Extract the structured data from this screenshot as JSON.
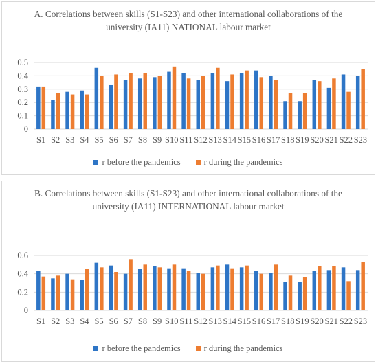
{
  "colors": {
    "before": "#2e75c6",
    "during": "#ed7d31",
    "grid": "#d9d9d9",
    "text": "#595959"
  },
  "chart_data": [
    {
      "type": "bar",
      "title": "A. Correlations between skills (S1-S23) and other international collaborations of the university (IA11) NATIONAL labour market",
      "categories": [
        "S1",
        "S2",
        "S3",
        "S4",
        "S5",
        "S6",
        "S7",
        "S8",
        "S9",
        "S10",
        "S11",
        "S12",
        "S13",
        "S14",
        "S15",
        "S16",
        "S17",
        "S18",
        "S19",
        "S20",
        "S21",
        "S22",
        "S23"
      ],
      "ylim": [
        0,
        0.5
      ],
      "yticks": [
        "0",
        "0.1",
        "0.2",
        "0.3",
        "0.4",
        "0.5"
      ],
      "series": [
        {
          "name": "r before the pandemics",
          "values": [
            0.32,
            0.22,
            0.28,
            0.29,
            0.46,
            0.33,
            0.37,
            0.38,
            0.39,
            0.43,
            0.42,
            0.37,
            0.42,
            0.36,
            0.42,
            0.44,
            0.4,
            0.21,
            0.21,
            0.37,
            0.31,
            0.41,
            0.4
          ]
        },
        {
          "name": "r during the pandemics",
          "values": [
            0.32,
            0.27,
            0.26,
            0.26,
            0.4,
            0.41,
            0.42,
            0.42,
            0.4,
            0.47,
            0.38,
            0.4,
            0.46,
            0.41,
            0.44,
            0.39,
            0.37,
            0.27,
            0.27,
            0.36,
            0.38,
            0.28,
            0.45
          ]
        }
      ],
      "legend_position": "bottom",
      "grid": true
    },
    {
      "type": "bar",
      "title": "B. Correlations between skills (S1-S23) and other international collaborations of the university (IA11) INTERNATIONAL labour market",
      "categories": [
        "S1",
        "S2",
        "S3",
        "S4",
        "S5",
        "S6",
        "S7",
        "S8",
        "S9",
        "S10",
        "S11",
        "S12",
        "S13",
        "S14",
        "S15",
        "S16",
        "S17",
        "S18",
        "S19",
        "S20",
        "S21",
        "S22",
        "S23"
      ],
      "ylim": [
        0,
        0.6
      ],
      "yticks": [
        "0",
        "0.2",
        "0.4",
        "0.6"
      ],
      "series": [
        {
          "name": "r before the pandemics",
          "values": [
            0.43,
            0.35,
            0.4,
            0.33,
            0.52,
            0.49,
            0.4,
            0.45,
            0.48,
            0.46,
            0.46,
            0.41,
            0.47,
            0.5,
            0.47,
            0.43,
            0.41,
            0.31,
            0.31,
            0.43,
            0.44,
            0.47,
            0.44
          ]
        },
        {
          "name": "r during the pandemics",
          "values": [
            0.37,
            0.38,
            0.34,
            0.45,
            0.47,
            0.42,
            0.56,
            0.5,
            0.47,
            0.5,
            0.43,
            0.4,
            0.49,
            0.46,
            0.49,
            0.4,
            0.5,
            0.38,
            0.36,
            0.48,
            0.48,
            0.32,
            0.53
          ]
        }
      ],
      "legend_position": "bottom",
      "grid": true
    }
  ]
}
